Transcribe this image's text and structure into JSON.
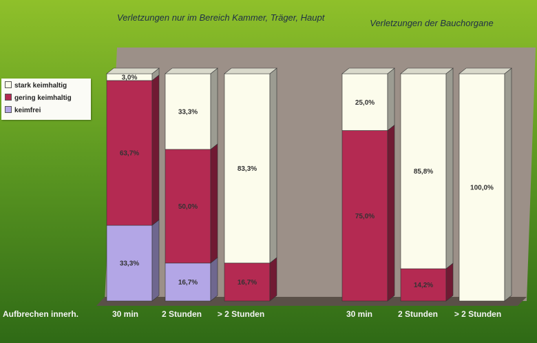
{
  "colors": {
    "stark keimhaltig": "#fcfcec",
    "gering keimhaltig": "#b42a52",
    "keimfrei": "#b3a6e6"
  },
  "legend": [
    "stark keimhaltig",
    "gering keimhaltig",
    "keimfrei"
  ],
  "xaxis_prefix": "Aufbrechen innerh.",
  "chart_data": [
    {
      "type": "bar",
      "stacked": true,
      "title": "Verletzungen nur im Bereich Kammer, Träger, Haupt",
      "categories": [
        "30 min",
        "2 Stunden",
        "> 2 Stunden"
      ],
      "ylim": [
        0,
        100
      ],
      "series": [
        {
          "name": "keimfrei",
          "values": [
            33.3,
            16.7,
            0
          ],
          "labels": [
            "33,3%",
            "16,7%",
            ""
          ]
        },
        {
          "name": "gering keimhaltig",
          "values": [
            63.7,
            50.0,
            16.7
          ],
          "labels": [
            "63,7%",
            "50,0%",
            "16,7%"
          ]
        },
        {
          "name": "stark keimhaltig",
          "values": [
            3.0,
            33.3,
            83.3
          ],
          "labels": [
            "3,0%",
            "33,3%",
            "83,3%"
          ]
        }
      ]
    },
    {
      "type": "bar",
      "stacked": true,
      "title": "Verletzungen der Bauchorgane",
      "categories": [
        "30 min",
        "2 Stunden",
        "> 2 Stunden"
      ],
      "ylim": [
        0,
        100
      ],
      "series": [
        {
          "name": "keimfrei",
          "values": [
            0,
            0,
            0
          ],
          "labels": [
            "",
            "",
            ""
          ]
        },
        {
          "name": "gering keimhaltig",
          "values": [
            75.0,
            14.2,
            0
          ],
          "labels": [
            "75,0%",
            "14,2%",
            ""
          ]
        },
        {
          "name": "stark keimhaltig",
          "values": [
            25.0,
            85.8,
            100.0
          ],
          "labels": [
            "25,0%",
            "85,8%",
            "100,0%"
          ]
        }
      ]
    }
  ]
}
